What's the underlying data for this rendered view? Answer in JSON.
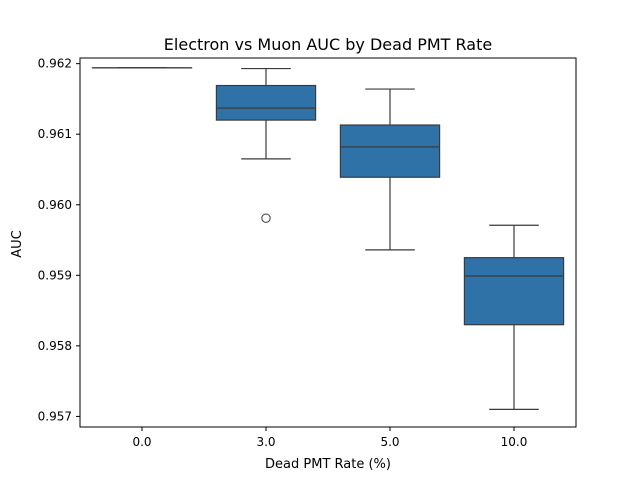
{
  "chart_data": {
    "type": "box",
    "title": "Electron vs Muon AUC by Dead PMT Rate",
    "xlabel": "Dead PMT Rate (%)",
    "ylabel": "AUC",
    "categories": [
      "0.0",
      "3.0",
      "5.0",
      "10.0"
    ],
    "ylim": [
      0.95685,
      0.96208
    ],
    "yticks": [
      0.957,
      0.958,
      0.959,
      0.96,
      0.961,
      0.962
    ],
    "ytick_labels": [
      "0.957",
      "0.958",
      "0.959",
      "0.960",
      "0.961",
      "0.962"
    ],
    "box_color": "#2f72a8",
    "edge_color": "#3a3a3a",
    "grid": false,
    "boxes": [
      {
        "category": "0.0",
        "whisker_low": 0.96194,
        "q1": 0.96194,
        "median": 0.96194,
        "q3": 0.96194,
        "whisker_high": 0.96194,
        "outliers": []
      },
      {
        "category": "3.0",
        "whisker_low": 0.96065,
        "q1": 0.9612,
        "median": 0.96137,
        "q3": 0.96169,
        "whisker_high": 0.96193,
        "outliers": [
          0.95981
        ]
      },
      {
        "category": "5.0",
        "whisker_low": 0.95936,
        "q1": 0.96039,
        "median": 0.96082,
        "q3": 0.96113,
        "whisker_high": 0.96164,
        "outliers": []
      },
      {
        "category": "10.0",
        "whisker_low": 0.9571,
        "q1": 0.9583,
        "median": 0.95899,
        "q3": 0.95925,
        "whisker_high": 0.95971,
        "outliers": []
      }
    ]
  }
}
